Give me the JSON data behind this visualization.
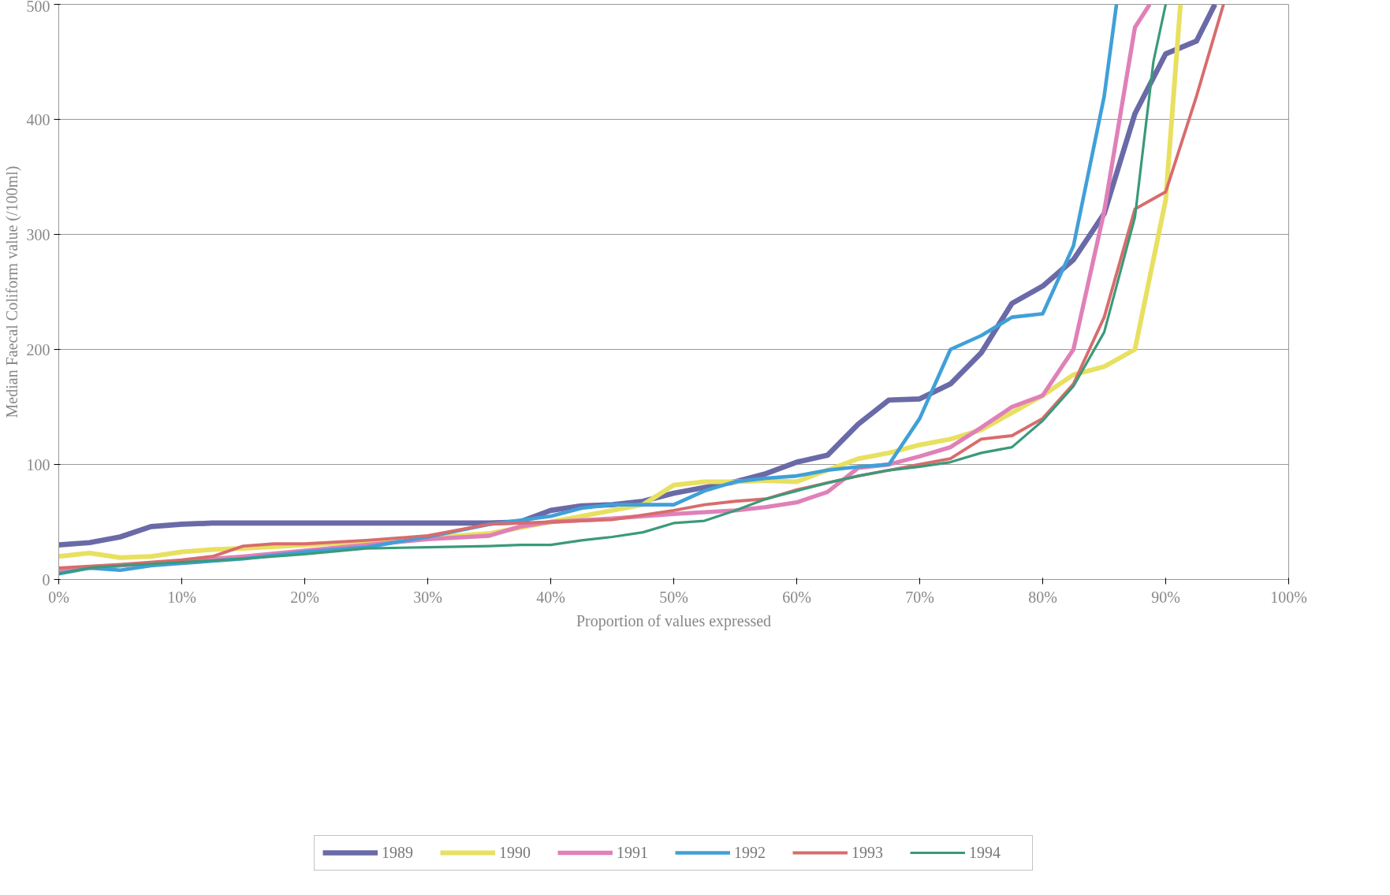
{
  "chart_data": {
    "type": "line",
    "xlabel": "Proportion of values expressed",
    "ylabel": "Median Faecal Coliform value (/100ml)",
    "xlim": [
      0,
      100
    ],
    "ylim": [
      0,
      500
    ],
    "xticks": [
      {
        "value": 0,
        "label": "0%"
      },
      {
        "value": 10,
        "label": "10%"
      },
      {
        "value": 20,
        "label": "20%"
      },
      {
        "value": 30,
        "label": "30%"
      },
      {
        "value": 40,
        "label": "40%"
      },
      {
        "value": 50,
        "label": "50%"
      },
      {
        "value": 60,
        "label": "60%"
      },
      {
        "value": 70,
        "label": "70%"
      },
      {
        "value": 80,
        "label": "80%"
      },
      {
        "value": 90,
        "label": "90%"
      },
      {
        "value": 100,
        "label": "100%"
      }
    ],
    "yticks": [
      0,
      100,
      200,
      300,
      400,
      500
    ],
    "grid": "y",
    "legend": "bottom",
    "marker": "none",
    "line_style": "solid",
    "series": [
      {
        "name": "1989",
        "color": "#6a6aa8",
        "x": [
          0,
          2.5,
          5,
          7.5,
          10,
          12.5,
          15,
          20,
          25,
          30,
          35,
          37.5,
          40,
          42.5,
          45,
          47.5,
          50,
          52.5,
          55,
          57.5,
          60,
          62.5,
          65,
          67.5,
          70,
          72.5,
          75,
          77.5,
          80,
          82.5,
          85,
          87.5,
          90,
          92.5,
          94
        ],
        "values": [
          30,
          32,
          37,
          46,
          48,
          49,
          49,
          49,
          49,
          49,
          49,
          50,
          60,
          64,
          65,
          68,
          75,
          80,
          85,
          92,
          102,
          108,
          135,
          156,
          157,
          170,
          197,
          240,
          255,
          278,
          318,
          405,
          457,
          468,
          500
        ]
      },
      {
        "name": "1990",
        "color": "#e8e060",
        "x": [
          0,
          2.5,
          5,
          7.5,
          10,
          12.5,
          15,
          20,
          25,
          30,
          35,
          37.5,
          40,
          45,
          47.5,
          50,
          52.5,
          55,
          57.5,
          60,
          62.5,
          65,
          67.5,
          70,
          72.5,
          75,
          77.5,
          80,
          82.5,
          85,
          87.5,
          90,
          91.2
        ],
        "values": [
          20,
          23,
          19,
          20,
          24,
          26,
          27,
          30,
          33,
          36,
          40,
          45,
          50,
          60,
          65,
          82,
          85,
          85,
          86,
          85,
          95,
          105,
          110,
          117,
          122,
          130,
          145,
          160,
          178,
          185,
          200,
          330,
          500
        ]
      },
      {
        "name": "1991",
        "color": "#e080b8",
        "x": [
          0,
          5,
          10,
          15,
          20,
          25,
          30,
          35,
          37.5,
          40,
          45,
          50,
          55,
          57.5,
          60,
          62.5,
          65,
          67.5,
          70,
          72.5,
          75,
          77.5,
          80,
          82.5,
          85,
          87.5,
          88.7
        ],
        "values": [
          8,
          12,
          16,
          20,
          25,
          30,
          35,
          38,
          46,
          50,
          53,
          57,
          60,
          63,
          67,
          76,
          97,
          100,
          107,
          115,
          132,
          150,
          160,
          200,
          320,
          480,
          500
        ]
      },
      {
        "name": "1992",
        "color": "#40a0d8",
        "x": [
          0,
          2.5,
          5,
          7.5,
          10,
          15,
          20,
          25,
          30,
          35,
          40,
          42.5,
          45,
          47.5,
          50,
          52.5,
          55,
          57.5,
          60,
          62.5,
          65,
          67.5,
          70,
          72.5,
          75,
          77.5,
          80,
          82.5,
          85,
          86
        ],
        "values": [
          5,
          10,
          8,
          12,
          14,
          18,
          24,
          28,
          37,
          48,
          55,
          62,
          65,
          65,
          65,
          77,
          85,
          88,
          90,
          95,
          98,
          100,
          140,
          200,
          212,
          228,
          231,
          290,
          420,
          500
        ]
      },
      {
        "name": "1993",
        "color": "#d86c6c",
        "x": [
          0,
          5,
          10,
          12.5,
          15,
          17.5,
          20,
          25,
          30,
          35,
          40,
          45,
          50,
          52.5,
          55,
          57.5,
          60,
          62.5,
          65,
          67.5,
          70,
          72.5,
          75,
          77.5,
          80,
          82.5,
          85,
          87.5,
          90,
          92.5,
          94.7
        ],
        "values": [
          10,
          13,
          17,
          20,
          29,
          31,
          31,
          34,
          38,
          48,
          50,
          52,
          60,
          65,
          68,
          70,
          78,
          84,
          90,
          95,
          100,
          105,
          122,
          125,
          140,
          170,
          228,
          322,
          337,
          420,
          500
        ]
      },
      {
        "name": "1994",
        "color": "#3a9a7a",
        "x": [
          0,
          2.5,
          5,
          10,
          15,
          20,
          25,
          30,
          35,
          37.5,
          40,
          42.5,
          45,
          47.5,
          50,
          52.5,
          55,
          57.5,
          60,
          62.5,
          65,
          67.5,
          70,
          72.5,
          75,
          77.5,
          80,
          82.5,
          85,
          87.5,
          89,
          90
        ],
        "values": [
          5,
          10,
          12,
          15,
          18,
          22,
          27,
          28,
          29,
          30,
          30,
          34,
          37,
          41,
          49,
          51,
          60,
          70,
          77,
          84,
          90,
          95,
          98,
          102,
          110,
          115,
          138,
          168,
          215,
          315,
          450,
          500
        ]
      }
    ]
  }
}
